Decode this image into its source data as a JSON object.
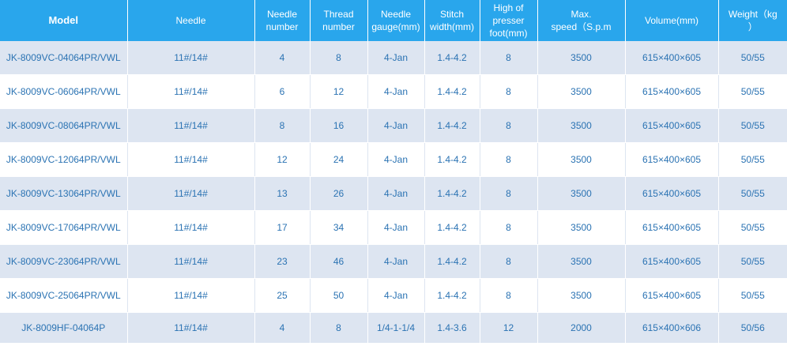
{
  "colors": {
    "header_bg": "#29a6ec",
    "header_text": "#ffffff",
    "row_alt_bg": "#dde5f1",
    "row_bg": "#ffffff",
    "cell_text": "#2b73b3"
  },
  "table": {
    "headers": [
      "Model",
      "Needle",
      "Needle\nnumber",
      "Thread\nnumber",
      "Needle\ngauge(mm)",
      "Stitch\nwidth(mm)",
      "High of\npresser\nfoot(mm)",
      "Max.\nspeed（S.p.m",
      "Volume(mm)",
      "Weight（kg\n）"
    ],
    "rows": [
      [
        "JK-8009VC-04064PR/VWL",
        "11#/14#",
        "4",
        "8",
        "4-Jan",
        "1.4-4.2",
        "8",
        "3500",
        "615×400×605",
        "50/55"
      ],
      [
        "JK-8009VC-06064PR/VWL",
        "11#/14#",
        "6",
        "12",
        "4-Jan",
        "1.4-4.2",
        "8",
        "3500",
        "615×400×605",
        "50/55"
      ],
      [
        "JK-8009VC-08064PR/VWL",
        "11#/14#",
        "8",
        "16",
        "4-Jan",
        "1.4-4.2",
        "8",
        "3500",
        "615×400×605",
        "50/55"
      ],
      [
        "JK-8009VC-12064PR/VWL",
        "11#/14#",
        "12",
        "24",
        "4-Jan",
        "1.4-4.2",
        "8",
        "3500",
        "615×400×605",
        "50/55"
      ],
      [
        "JK-8009VC-13064PR/VWL",
        "11#/14#",
        "13",
        "26",
        "4-Jan",
        "1.4-4.2",
        "8",
        "3500",
        "615×400×605",
        "50/55"
      ],
      [
        "JK-8009VC-17064PR/VWL",
        "11#/14#",
        "17",
        "34",
        "4-Jan",
        "1.4-4.2",
        "8",
        "3500",
        "615×400×605",
        "50/55"
      ],
      [
        "JK-8009VC-23064PR/VWL",
        "11#/14#",
        "23",
        "46",
        "4-Jan",
        "1.4-4.2",
        "8",
        "3500",
        "615×400×605",
        "50/55"
      ],
      [
        "JK-8009VC-25064PR/VWL",
        "11#/14#",
        "25",
        "50",
        "4-Jan",
        "1.4-4.2",
        "8",
        "3500",
        "615×400×605",
        "50/55"
      ],
      [
        "JK-8009HF-04064P",
        "11#/14#",
        "4",
        "8",
        "1/4-1-1/4",
        "1.4-3.6",
        "12",
        "2000",
        "615×400×606",
        "50/56"
      ]
    ]
  }
}
